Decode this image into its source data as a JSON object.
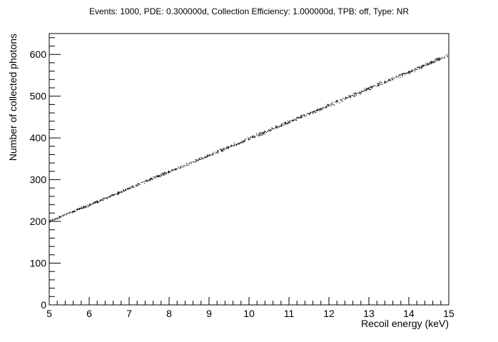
{
  "chart_data": {
    "type": "scatter",
    "title": "Events: 1000, PDE: 0.300000d, Collection Efficiency: 1.000000d, TPB: off, Type: NR",
    "xlabel": "Recoil energy (keV)",
    "ylabel": "Number of collected photons",
    "xlim": [
      5,
      15
    ],
    "ylim": [
      0,
      650
    ],
    "x_ticks": [
      5,
      6,
      7,
      8,
      9,
      10,
      11,
      12,
      13,
      14,
      15
    ],
    "y_ticks": [
      0,
      100,
      200,
      300,
      400,
      500,
      600
    ],
    "grid": false,
    "legend": "none",
    "series": [
      {
        "marker_color": "#000000",
        "x": [
          5.0,
          5.5,
          6.0,
          6.5,
          7.0,
          7.5,
          8.0,
          8.5,
          9.0,
          9.5,
          10.0,
          10.5,
          11.0,
          11.5,
          12.0,
          12.5,
          13.0,
          13.5,
          14.0,
          14.5,
          15.0
        ],
        "y": [
          200,
          220,
          239,
          259,
          279,
          299,
          319,
          338,
          358,
          378,
          398,
          418,
          438,
          458,
          478,
          498,
          518,
          538,
          558,
          578,
          598
        ]
      }
    ]
  }
}
